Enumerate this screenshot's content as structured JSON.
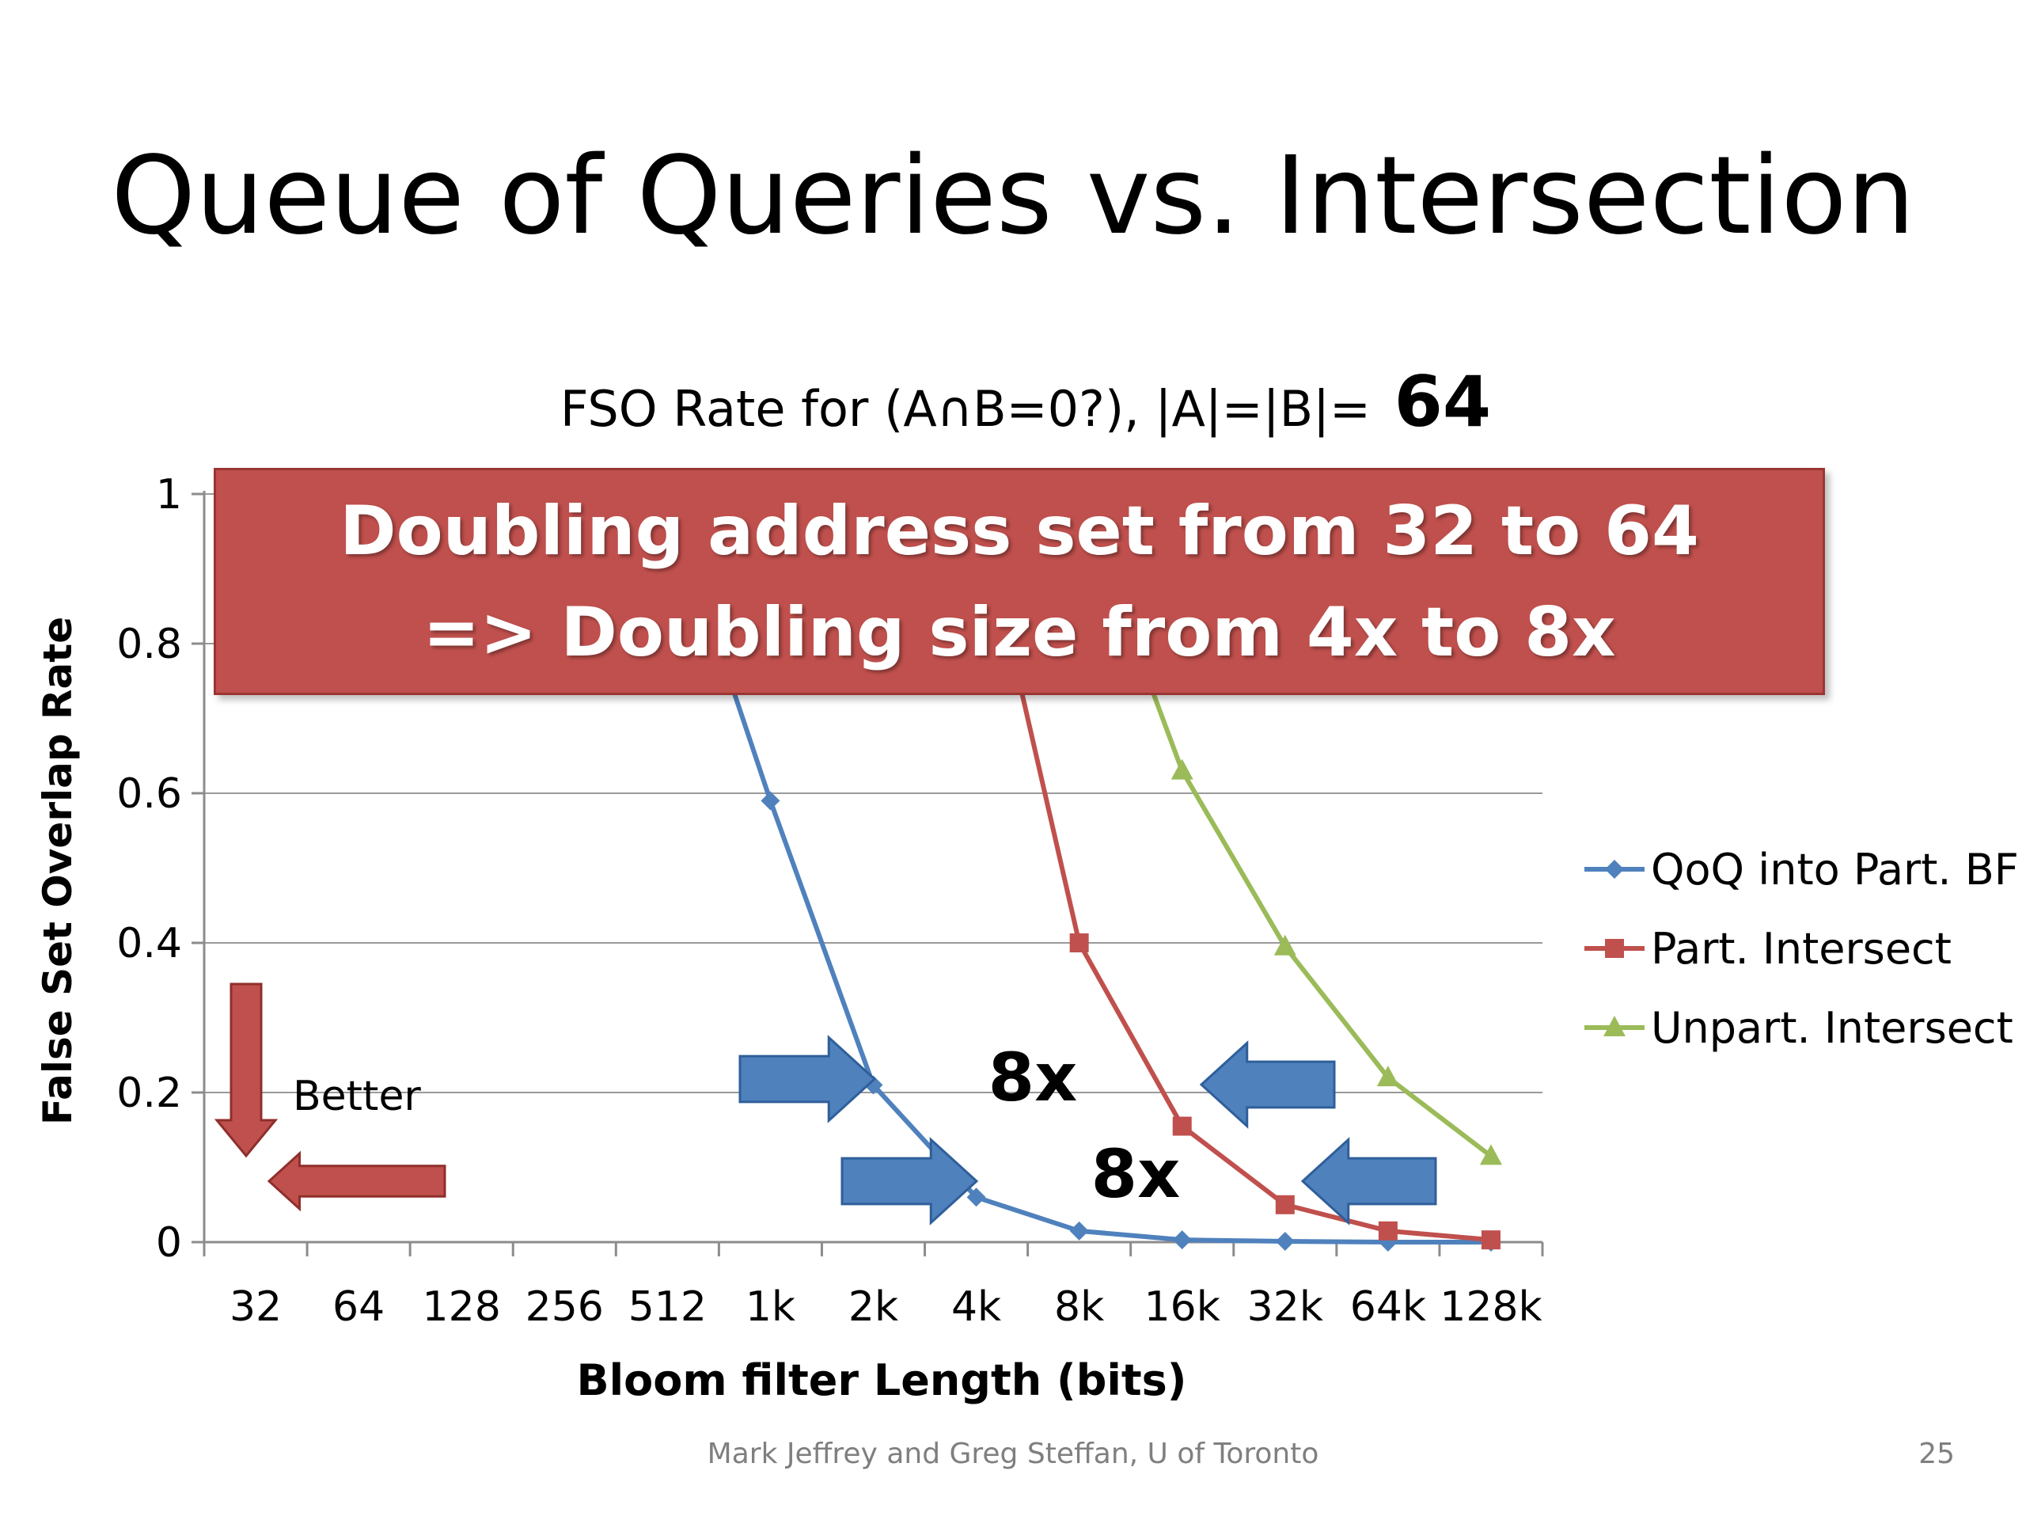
{
  "slide": {
    "title": "Queue of Queries vs. Intersection",
    "footer": "Mark Jeffrey and Greg Steffan, U of Toronto",
    "page_number": "25"
  },
  "callout": {
    "line1": "Doubling address set from 32 to 64",
    "line2": "=> Doubling size from 4x to 8x",
    "color": "#c0504d"
  },
  "annotations": {
    "better_label": "Better",
    "gap_label_top": "8x",
    "gap_label_bottom": "8x",
    "arrow_color": "#4f81bd",
    "better_arrow_color": "#c0504d"
  },
  "chart_data": {
    "type": "line",
    "title_prefix": "FSO Rate for (A∩B=0?), |A|=|B|=",
    "title_emphasis": "64",
    "xlabel": "Bloom filter Length (bits)",
    "ylabel": "False Set Overlap Rate",
    "categories": [
      "32",
      "64",
      "128",
      "256",
      "512",
      "1k",
      "2k",
      "4k",
      "8k",
      "16k",
      "32k",
      "64k",
      "128k"
    ],
    "yticks": [
      "0",
      "0.2",
      "0.4",
      "0.6",
      "0.8",
      "1"
    ],
    "ylim": [
      0,
      1
    ],
    "grid": true,
    "legend": "right",
    "series": [
      {
        "name": "QoQ into Part. BF",
        "color": "#4f81bd",
        "marker": "diamond",
        "values": [
          1,
          1,
          1,
          1,
          1,
          0.59,
          0.21,
          0.06,
          0.015,
          0.003,
          0.001,
          0,
          0
        ]
      },
      {
        "name": "Part. Intersect",
        "color": "#c0504d",
        "marker": "square",
        "values": [
          1,
          1,
          1,
          1,
          1,
          1,
          1,
          1,
          0.4,
          0.155,
          0.05,
          0.015,
          0.003
        ]
      },
      {
        "name": "Unpart. Intersect",
        "color": "#9bbb59",
        "marker": "triangle",
        "values": [
          1,
          1,
          1,
          1,
          1,
          1,
          1,
          1,
          1,
          0.63,
          0.395,
          0.22,
          0.115
        ]
      }
    ]
  }
}
